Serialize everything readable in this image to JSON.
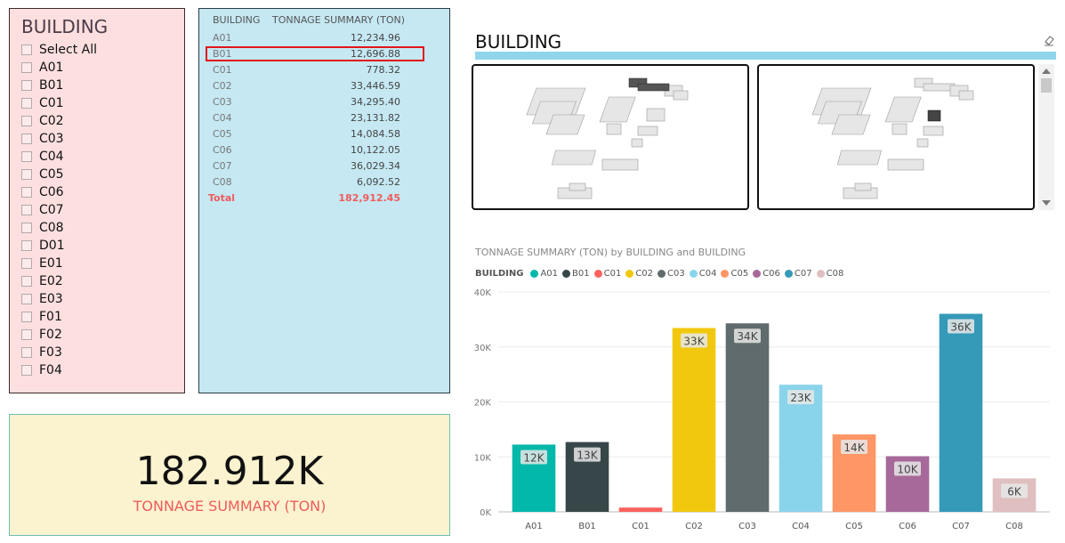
{
  "slicer": {
    "title": "BUILDING",
    "items": [
      "Select All",
      "A01",
      "B01",
      "C01",
      "C02",
      "C03",
      "C04",
      "C05",
      "C06",
      "C07",
      "C08",
      "D01",
      "E01",
      "E02",
      "E03",
      "F01",
      "F02",
      "F03",
      "F04"
    ]
  },
  "table": {
    "headers": [
      "BUILDING",
      "TONNAGE SUMMARY (TON)"
    ],
    "rows": [
      {
        "building": "A01",
        "tonnage": "12,234.96"
      },
      {
        "building": "B01",
        "tonnage": "12,696.88"
      },
      {
        "building": "C01",
        "tonnage": "778.32"
      },
      {
        "building": "C02",
        "tonnage": "33,446.59"
      },
      {
        "building": "C03",
        "tonnage": "34,295.40"
      },
      {
        "building": "C04",
        "tonnage": "23,131.82"
      },
      {
        "building": "C05",
        "tonnage": "14,084.58"
      },
      {
        "building": "C06",
        "tonnage": "10,122.05"
      },
      {
        "building": "C07",
        "tonnage": "36,029.34"
      },
      {
        "building": "C08",
        "tonnage": "6,092.52"
      }
    ],
    "total_label": "Total",
    "total_value": "182,912.45",
    "highlighted_row": "B01"
  },
  "card": {
    "value": "182.912K",
    "label": "TONNAGE SUMMARY (TON)"
  },
  "images": {
    "title": "BUILDING",
    "eraser_icon": "eraser-icon"
  },
  "chart_data": {
    "type": "bar",
    "title": "TONNAGE SUMMARY (TON) by BUILDING and BUILDING",
    "legend_title": "BUILDING",
    "legend_placement": "top-left",
    "categories": [
      "A01",
      "B01",
      "C01",
      "C02",
      "C03",
      "C04",
      "C05",
      "C06",
      "C07",
      "C08"
    ],
    "values": [
      12234.96,
      12696.88,
      778.32,
      33446.59,
      34295.4,
      23131.82,
      14084.58,
      10122.05,
      36029.34,
      6092.52
    ],
    "data_labels": [
      "12K",
      "13K",
      "",
      "33K",
      "34K",
      "23K",
      "14K",
      "10K",
      "36K",
      "6K"
    ],
    "colors": [
      "#01b8aa",
      "#374649",
      "#fd625e",
      "#f2c80f",
      "#5f6b6d",
      "#8ad4eb",
      "#fe9666",
      "#a66999",
      "#3599b8",
      "#dfbfbf"
    ],
    "ylim": [
      0,
      40000
    ],
    "yticks": [
      0,
      10000,
      20000,
      30000,
      40000
    ],
    "ytick_labels": [
      "0K",
      "10K",
      "20K",
      "30K",
      "40K"
    ],
    "grid": true
  }
}
